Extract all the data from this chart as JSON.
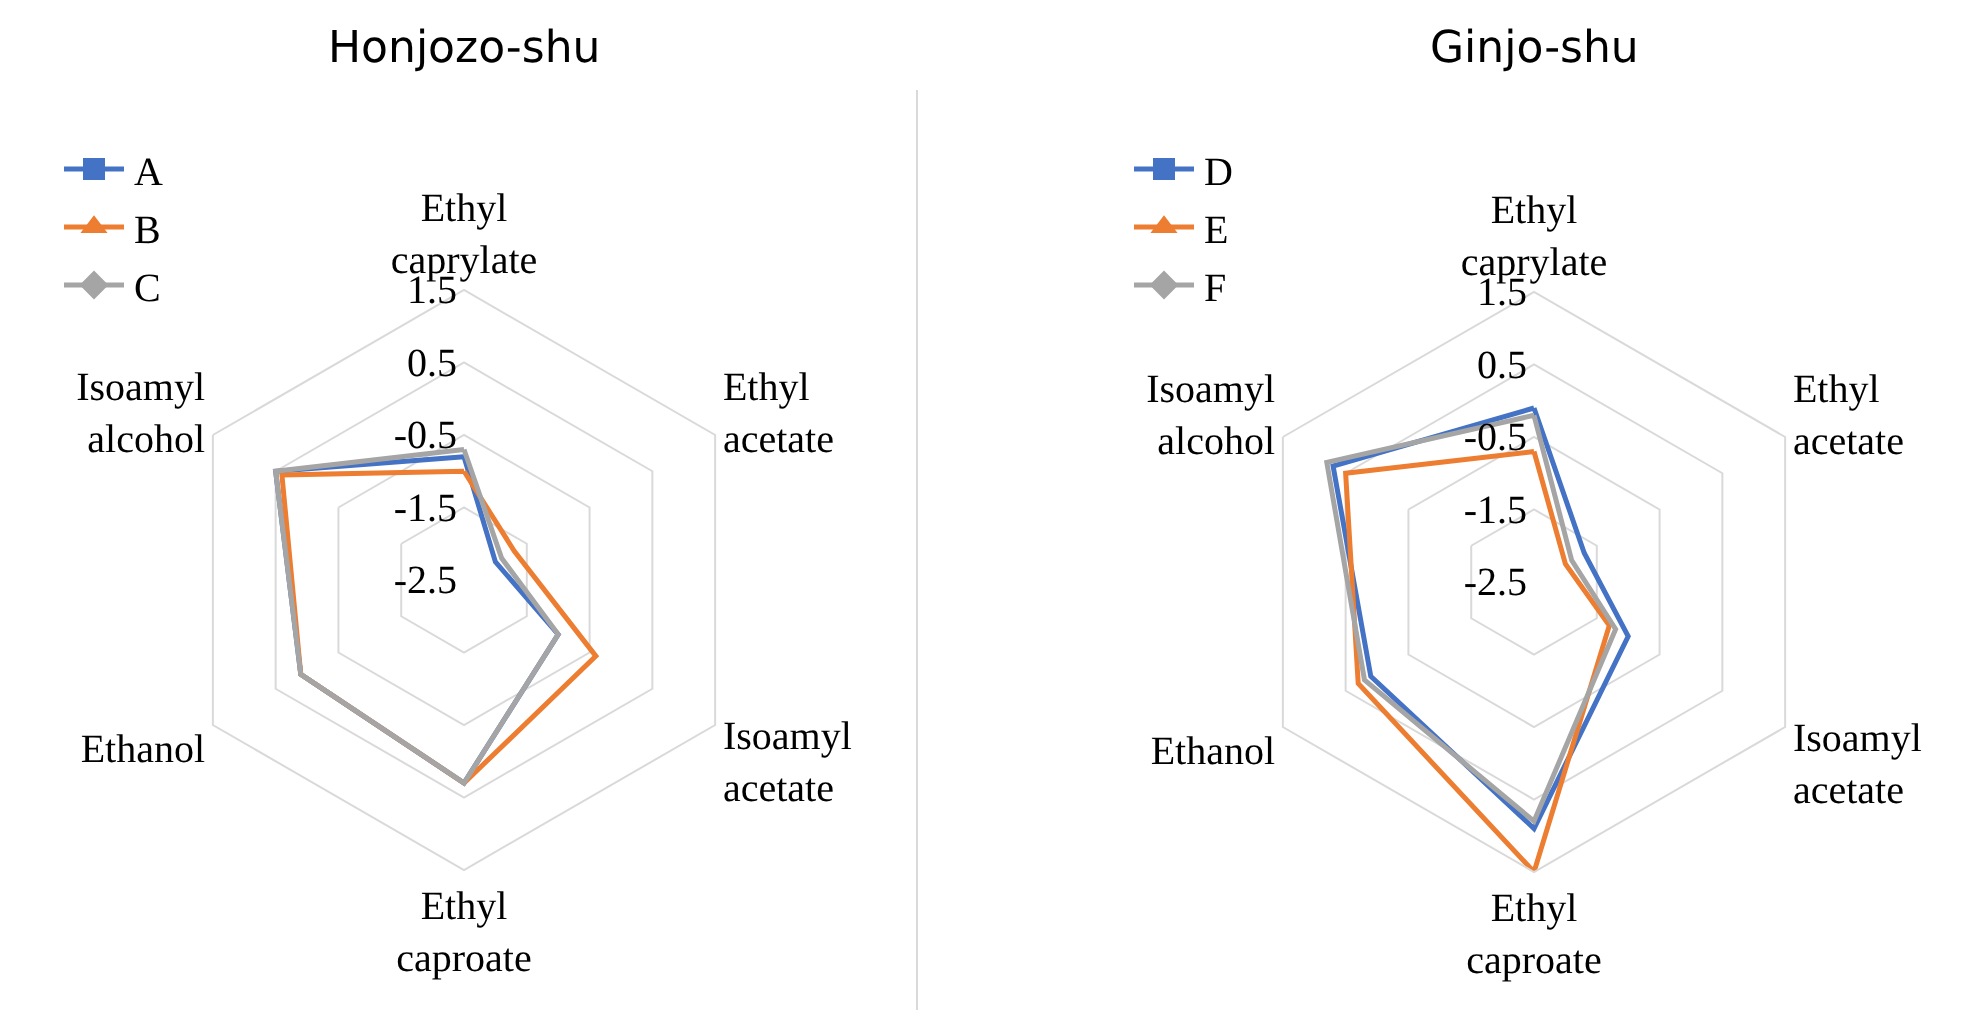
{
  "chart_data": [
    {
      "type": "radar",
      "title": "Honjozo-shu",
      "categories": [
        "Ethyl caprylate",
        "Ethyl acetate",
        "Isoamyl acetate",
        "Ethyl caproate",
        "Ethanol",
        "Isoamyl alcohol"
      ],
      "ylim": [
        -2.5,
        1.5
      ],
      "yticks": [
        -2.5,
        -1.5,
        -0.5,
        0.5,
        1.5
      ],
      "grid": true,
      "legend": "top left",
      "series": [
        {
          "name": "A",
          "color": "#4472c4",
          "marker": "square",
          "values": [
            -0.8,
            -2.0,
            -1.0,
            0.3,
            0.1,
            0.5
          ]
        },
        {
          "name": "B",
          "color": "#ed7d31",
          "marker": "triangle",
          "values": [
            -1.0,
            -1.7,
            -0.4,
            0.3,
            0.1,
            0.4
          ]
        },
        {
          "name": "C",
          "color": "#a5a5a5",
          "marker": "diamond",
          "values": [
            -0.7,
            -1.9,
            -1.0,
            0.3,
            0.1,
            0.5
          ]
        }
      ]
    },
    {
      "type": "radar",
      "title": "Ginjo-shu",
      "categories": [
        "Ethyl caprylate",
        "Ethyl acetate",
        "Isoamyl acetate",
        "Ethyl caproate",
        "Ethanol",
        "Isoamyl alcohol"
      ],
      "ylim": [
        -2.5,
        1.5
      ],
      "yticks": [
        -2.5,
        -1.5,
        -0.5,
        0.5,
        1.5
      ],
      "grid": true,
      "legend": "top left",
      "series": [
        {
          "name": "D",
          "color": "#4472c4",
          "marker": "square",
          "values": [
            -0.1,
            -1.7,
            -1.0,
            0.9,
            0.1,
            0.7
          ]
        },
        {
          "name": "E",
          "color": "#ed7d31",
          "marker": "triangle",
          "values": [
            -0.7,
            -2.0,
            -1.3,
            1.5,
            0.3,
            0.5
          ]
        },
        {
          "name": "F",
          "color": "#a5a5a5",
          "marker": "diamond",
          "values": [
            -0.2,
            -1.9,
            -1.2,
            0.8,
            0.2,
            0.8
          ]
        }
      ]
    }
  ]
}
